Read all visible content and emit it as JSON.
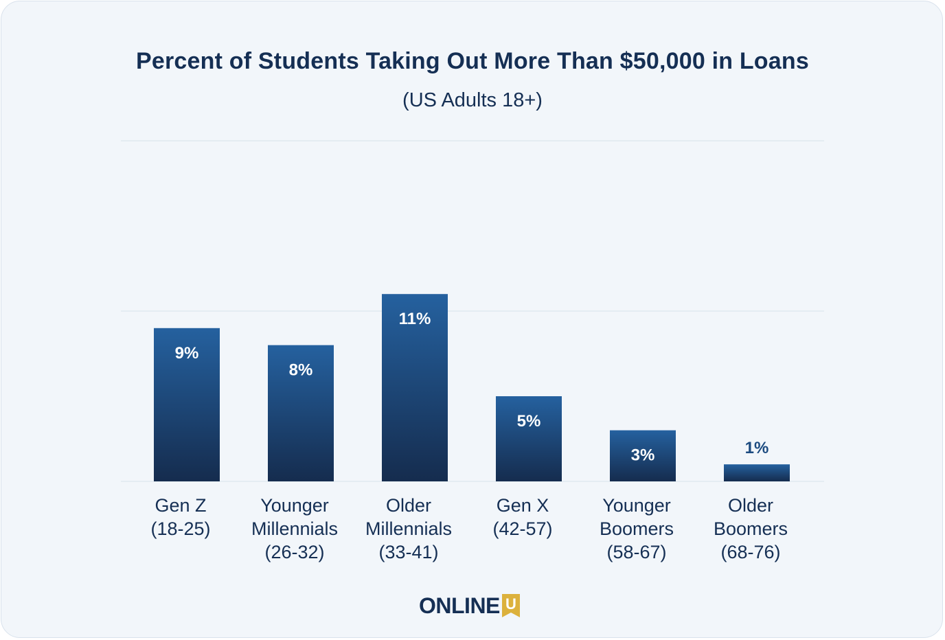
{
  "chart_data": {
    "type": "bar",
    "title": "Percent of Students Taking Out More Than $50,000 in Loans",
    "subtitle": "(US Adults 18+)",
    "categories": [
      [
        "Gen Z",
        "(18-25)"
      ],
      [
        "Younger",
        "Millennials",
        "(26-32)"
      ],
      [
        "Older",
        "Millennials",
        "(33-41)"
      ],
      [
        "Gen X",
        "(42-57)"
      ],
      [
        "Younger",
        "Boomers",
        "(58-67)"
      ],
      [
        "Older",
        "Boomers",
        "(68-76)"
      ]
    ],
    "values": [
      9,
      8,
      11,
      5,
      3,
      1
    ],
    "value_labels": [
      "9%",
      "8%",
      "11%",
      "5%",
      "3%",
      "1%"
    ],
    "unit": "%",
    "ylim": [
      0,
      20
    ],
    "gridlines": [
      0,
      10,
      20
    ],
    "grid": true,
    "colors": {
      "bar_top": "#25619f",
      "bar_bottom": "#152c4e",
      "grid": "#e0e8f0",
      "text": "#152f54",
      "label_inside": "#ffffff",
      "label_outside": "#1c4b80"
    }
  },
  "brand": {
    "logo_text": "ONLINE",
    "logo_letter": "U",
    "logo_accent": "#dcb13c"
  }
}
